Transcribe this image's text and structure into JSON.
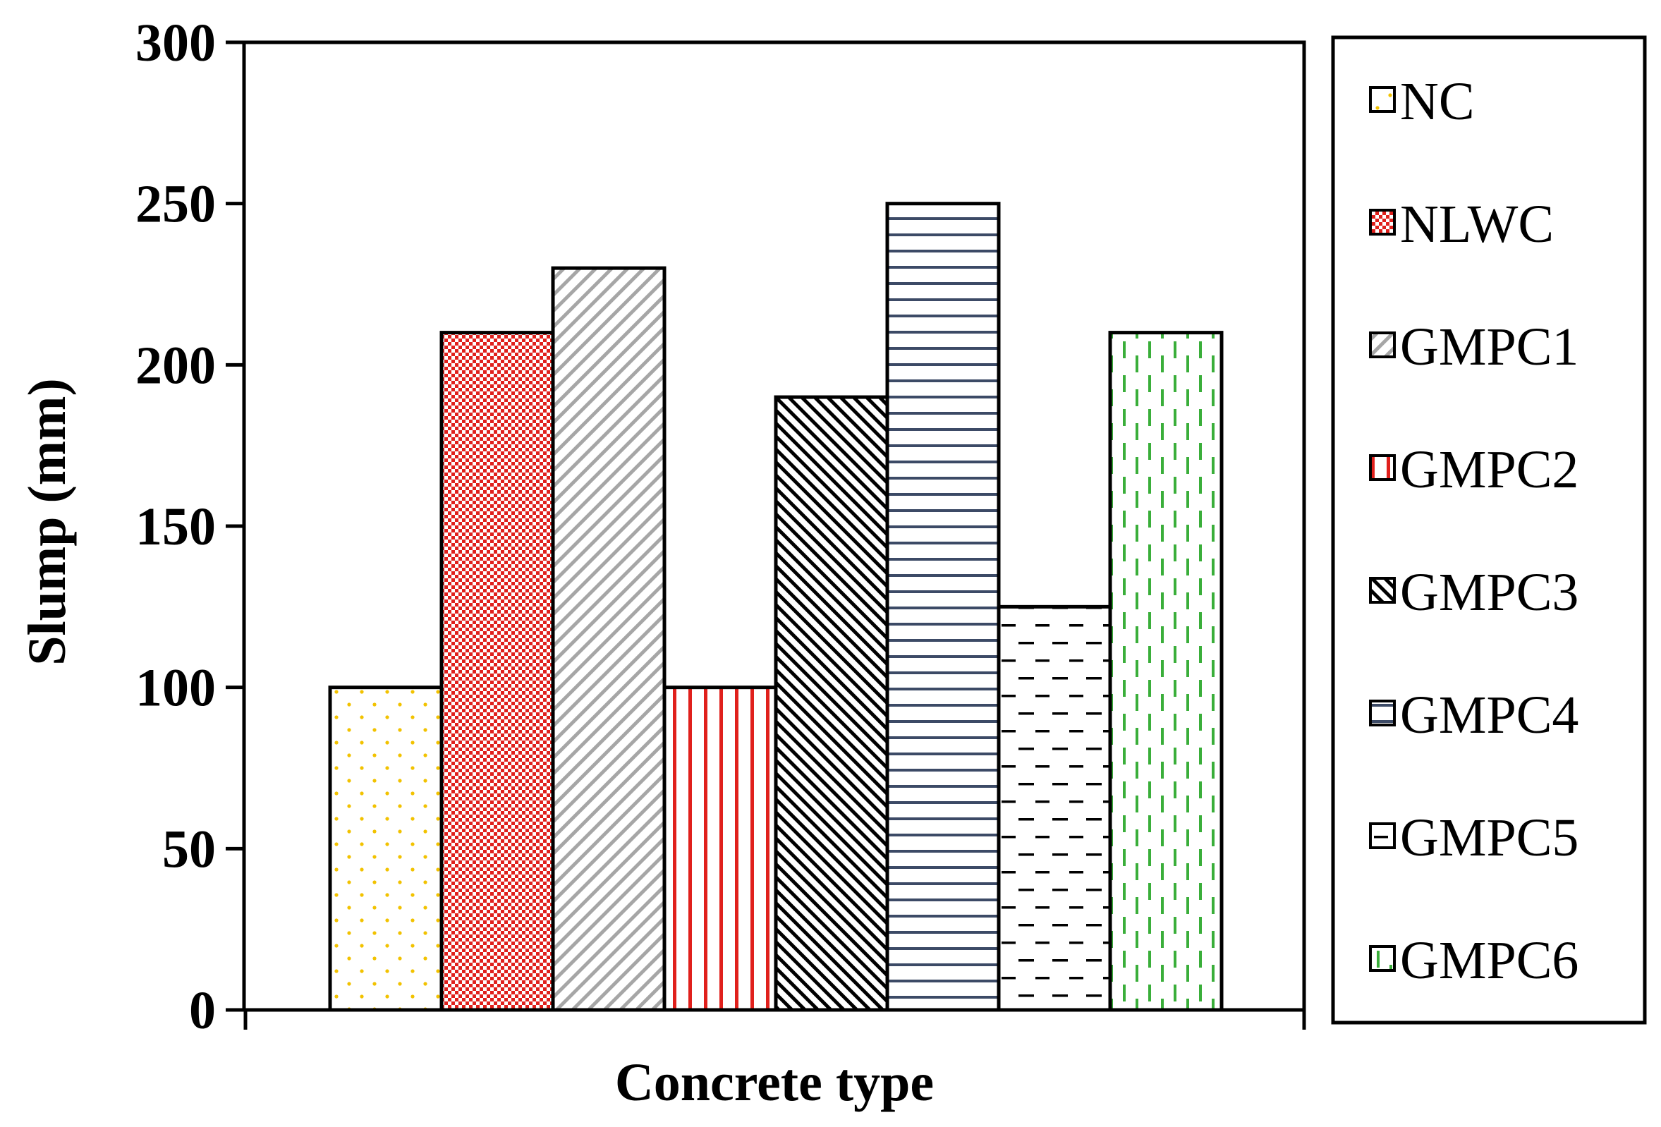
{
  "chart_data": {
    "type": "bar",
    "title": "",
    "xlabel": "Concrete type",
    "ylabel": "Slump (mm)",
    "ylim": [
      0,
      300
    ],
    "yticks": [
      0,
      50,
      100,
      150,
      200,
      250,
      300
    ],
    "ytick_labels": [
      "0",
      "50",
      "100",
      "150",
      "200",
      "250",
      "300"
    ],
    "grid": false,
    "legend_position": "right",
    "series": [
      {
        "name": "NC",
        "value": 100,
        "pattern": "dots",
        "color": "#f2c200"
      },
      {
        "name": "NLWC",
        "value": 210,
        "pattern": "checker",
        "color": "#e0201c"
      },
      {
        "name": "GMPC1",
        "value": 230,
        "pattern": "diagonal-light",
        "color": "#a6a6a6"
      },
      {
        "name": "GMPC2",
        "value": 100,
        "pattern": "vertical-lines",
        "color": "#e0201c"
      },
      {
        "name": "GMPC3",
        "value": 190,
        "pattern": "diagonal-dense",
        "color": "#000000"
      },
      {
        "name": "GMPC4",
        "value": 250,
        "pattern": "horizontal-lines",
        "color": "#3c4a66"
      },
      {
        "name": "GMPC5",
        "value": 125,
        "pattern": "horizontal-dashes",
        "color": "#000000"
      },
      {
        "name": "GMPC6",
        "value": 210,
        "pattern": "vertical-dashes",
        "color": "#3aae3a"
      }
    ]
  }
}
